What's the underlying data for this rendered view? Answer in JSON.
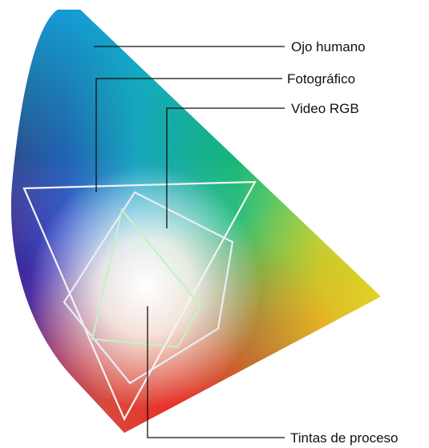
{
  "diagram": {
    "labels": {
      "human_eye": "Ojo humano",
      "photographic": "Fotográfico",
      "video_rgb": "Video RGB",
      "process_inks": "Tintas de proceso"
    }
  },
  "colors": {
    "leader_line": "#111111",
    "gamut_outline": "#f4f4f4",
    "inks_outline": "#c6f0c6"
  }
}
